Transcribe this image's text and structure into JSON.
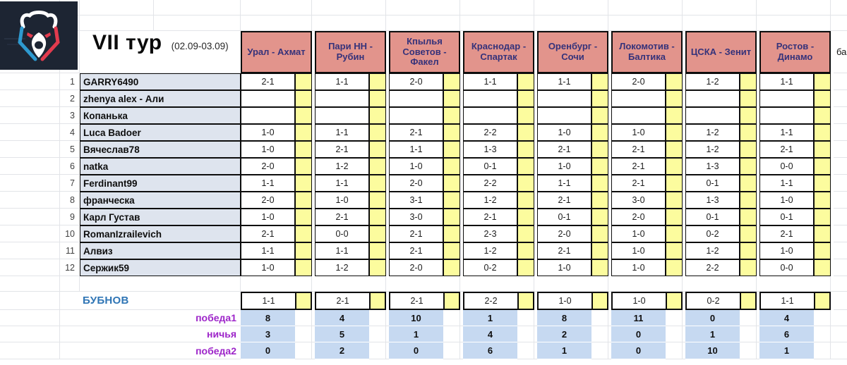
{
  "logo": {
    "name": "russian-premier-league-bear-logo"
  },
  "title": {
    "round": "VII тур",
    "dates": "(02.09-03.09)"
  },
  "points_col_label": "ба",
  "matches": [
    {
      "label": "Урал - Ахмат"
    },
    {
      "label": "Пари НН - Рубин"
    },
    {
      "label": "Кпылья Советов - Факел"
    },
    {
      "label": "Краснодар - Спартак"
    },
    {
      "label": "Оренбург - Сочи"
    },
    {
      "label": "Локомотив - Балтика"
    },
    {
      "label": "ЦСКА - Зенит"
    },
    {
      "label": "Ростов - Динамо"
    }
  ],
  "players": [
    {
      "num": "1",
      "name": "GARRY6490",
      "predictions": [
        "2-1",
        "1-1",
        "2-0",
        "1-1",
        "1-1",
        "2-0",
        "1-2",
        "1-1"
      ]
    },
    {
      "num": "2",
      "name": "zhenya alex - Али",
      "predictions": [
        "",
        "",
        "",
        "",
        "",
        "",
        "",
        ""
      ]
    },
    {
      "num": "3",
      "name": "Копанька",
      "predictions": [
        "",
        "",
        "",
        "",
        "",
        "",
        "",
        ""
      ]
    },
    {
      "num": "4",
      "name": "Luca Badoer",
      "predictions": [
        "1-0",
        "1-1",
        "2-1",
        "2-2",
        "1-0",
        "1-0",
        "1-2",
        "1-1"
      ]
    },
    {
      "num": "5",
      "name": "Вячеслав78",
      "predictions": [
        "1-0",
        "2-1",
        "1-1",
        "1-3",
        "2-1",
        "2-1",
        "1-2",
        "2-1"
      ]
    },
    {
      "num": "6",
      "name": "natka",
      "predictions": [
        "2-0",
        "1-2",
        "1-0",
        "0-1",
        "1-0",
        "2-1",
        "1-3",
        "0-0"
      ]
    },
    {
      "num": "7",
      "name": "Ferdinant99",
      "predictions": [
        "1-1",
        "1-1",
        "2-0",
        "2-2",
        "1-1",
        "2-1",
        "0-1",
        "1-1"
      ]
    },
    {
      "num": "8",
      "name": "франческа",
      "predictions": [
        "2-0",
        "1-0",
        "3-1",
        "1-2",
        "2-1",
        "3-0",
        "1-3",
        "1-0"
      ]
    },
    {
      "num": "9",
      "name": "Карл Густав",
      "predictions": [
        "1-0",
        "2-1",
        "3-0",
        "2-1",
        "0-1",
        "2-0",
        "0-1",
        "0-1"
      ]
    },
    {
      "num": "10",
      "name": "RomanIzrailevich",
      "predictions": [
        "2-1",
        "0-0",
        "2-1",
        "2-3",
        "2-0",
        "1-0",
        "0-2",
        "2-1"
      ]
    },
    {
      "num": "11",
      "name": "Алвиз",
      "predictions": [
        "1-1",
        "1-1",
        "2-1",
        "1-2",
        "2-1",
        "1-0",
        "1-2",
        "1-0"
      ]
    },
    {
      "num": "12",
      "name": "Сержик59",
      "predictions": [
        "1-0",
        "1-2",
        "2-0",
        "0-2",
        "1-0",
        "1-0",
        "2-2",
        "0-0"
      ]
    }
  ],
  "bubnov": {
    "label": "БУБНОВ",
    "predictions": [
      "1-1",
      "2-1",
      "2-1",
      "2-2",
      "1-0",
      "1-0",
      "0-2",
      "1-1"
    ]
  },
  "stats": [
    {
      "label": "победа1",
      "values": [
        "8",
        "4",
        "10",
        "1",
        "8",
        "11",
        "0",
        "4"
      ]
    },
    {
      "label": "ничья",
      "values": [
        "3",
        "5",
        "1",
        "4",
        "2",
        "0",
        "1",
        "6"
      ]
    },
    {
      "label": "победа2",
      "values": [
        "0",
        "2",
        "0",
        "6",
        "1",
        "0",
        "10",
        "1"
      ]
    }
  ],
  "colors": {
    "pink": "#e2948c",
    "headerText": "#35327a",
    "yellow": "#fcfc9e",
    "nameFill": "#dee4ee",
    "blueFill": "#c6d9f1",
    "bubnovBlue": "#2f75b5",
    "purple": "#9d25c9",
    "border": "#0d0d0d",
    "ghost": "#e2e4e8",
    "logoBg": "#1d2533",
    "logoBlue": "#2e9ad0",
    "logoRed": "#e23b4e"
  }
}
